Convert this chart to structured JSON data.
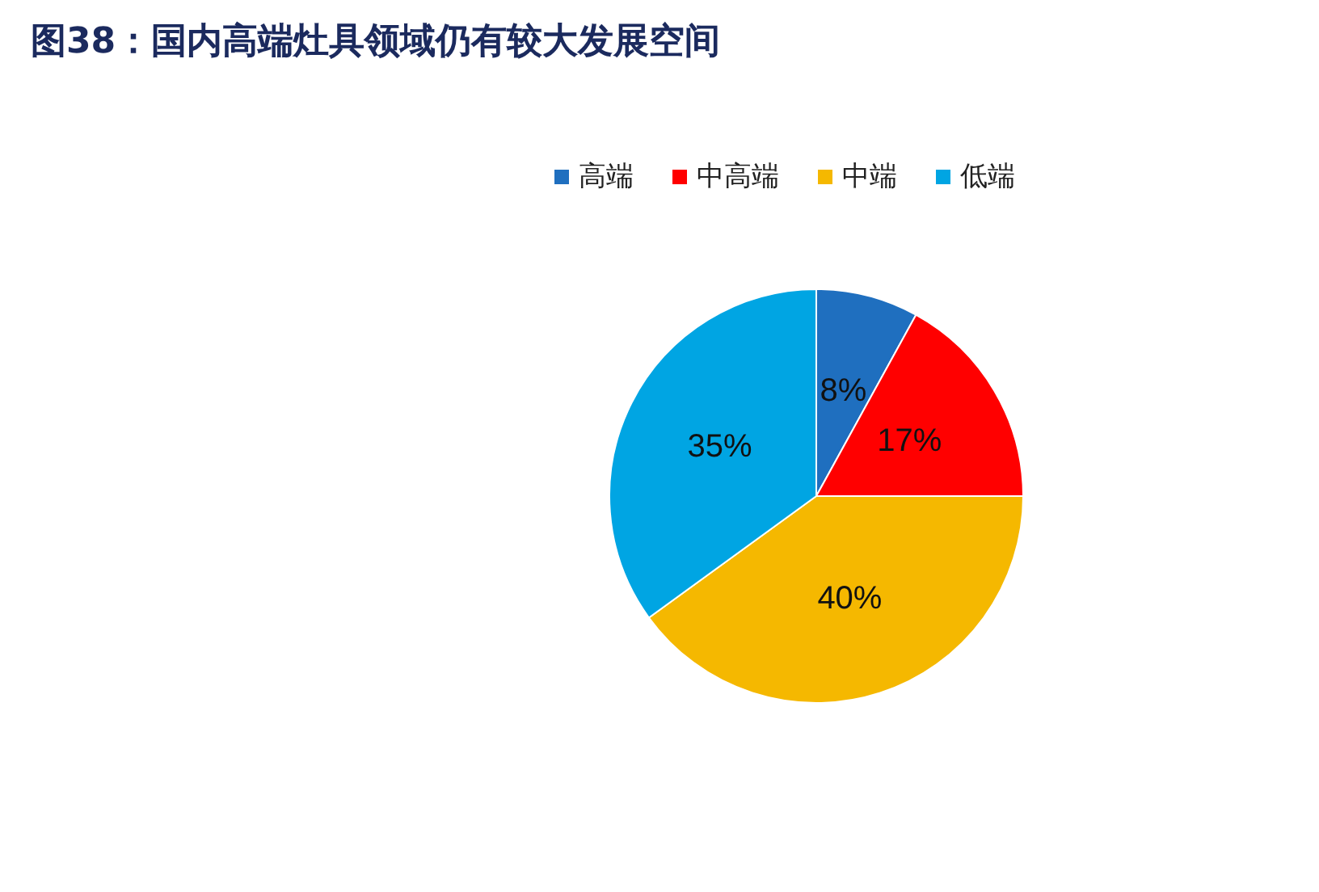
{
  "chart_data": {
    "type": "pie",
    "title": "图38：国内高端灶具领域仍有较大发展空间",
    "categories": [
      "高端",
      "中高端",
      "中端",
      "低端"
    ],
    "values": [
      8,
      17,
      40,
      35
    ],
    "value_labels": [
      "8%",
      "17%",
      "40%",
      "35%"
    ],
    "colors": [
      "#1f6fbf",
      "#ff0000",
      "#f5b800",
      "#00a5e3"
    ],
    "legend": "top"
  }
}
